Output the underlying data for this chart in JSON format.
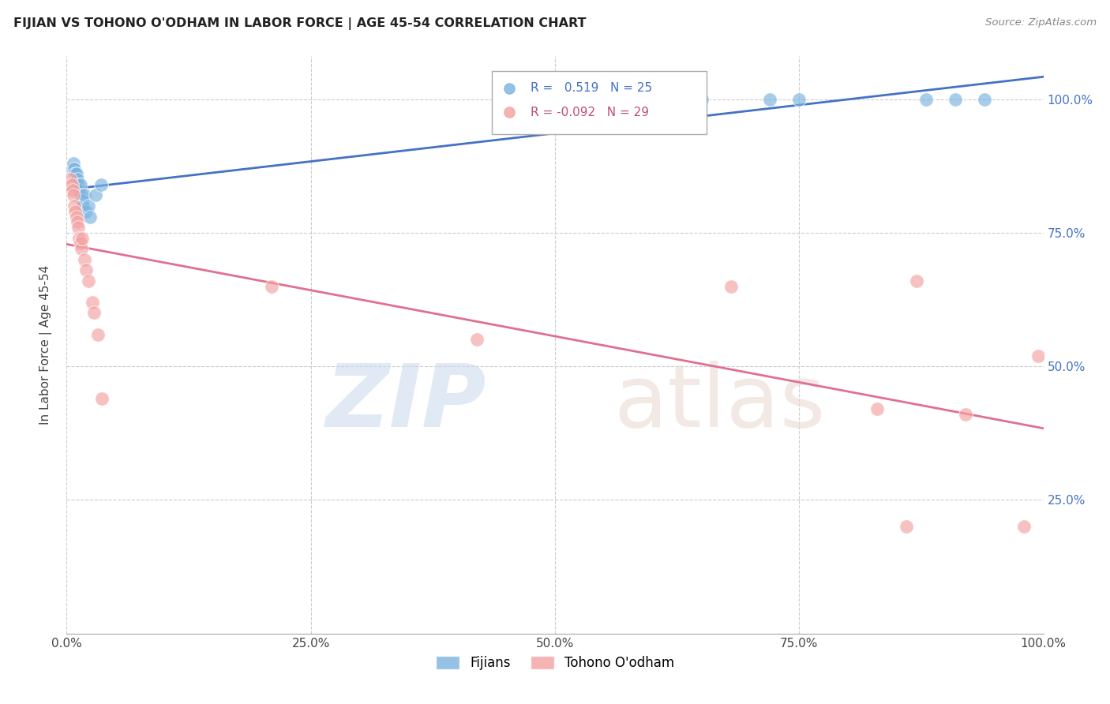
{
  "title": "FIJIAN VS TOHONO O'ODHAM IN LABOR FORCE | AGE 45-54 CORRELATION CHART",
  "source": "Source: ZipAtlas.com",
  "ylabel": "In Labor Force | Age 45-54",
  "fijian_r": 0.519,
  "fijian_n": 25,
  "tohono_r": -0.092,
  "tohono_n": 29,
  "fijian_color": "#7ab3e0",
  "tohono_color": "#f4a0a0",
  "fijian_line_color": "#4472c4",
  "tohono_line_color": "#e07090",
  "xlim": [
    0.0,
    1.0
  ],
  "ylim": [
    0.0,
    1.08
  ],
  "fijian_x": [
    0.006,
    0.007,
    0.008,
    0.009,
    0.01,
    0.011,
    0.012,
    0.013,
    0.014,
    0.015,
    0.016,
    0.017,
    0.018,
    0.02,
    0.022,
    0.024,
    0.03,
    0.035,
    0.62,
    0.65,
    0.72,
    0.75,
    0.88,
    0.91,
    0.94
  ],
  "fijian_y": [
    0.87,
    0.88,
    0.87,
    0.86,
    0.86,
    0.85,
    0.84,
    0.83,
    0.84,
    0.82,
    0.81,
    0.8,
    0.82,
    0.79,
    0.8,
    0.78,
    0.82,
    0.84,
    1.0,
    1.0,
    1.0,
    1.0,
    1.0,
    1.0,
    1.0
  ],
  "tohono_x": [
    0.004,
    0.005,
    0.006,
    0.007,
    0.008,
    0.009,
    0.01,
    0.011,
    0.012,
    0.013,
    0.014,
    0.015,
    0.016,
    0.018,
    0.02,
    0.022,
    0.026,
    0.028,
    0.032,
    0.036,
    0.21,
    0.42,
    0.68,
    0.83,
    0.86,
    0.87,
    0.92,
    0.98,
    0.995
  ],
  "tohono_y": [
    0.85,
    0.84,
    0.83,
    0.82,
    0.8,
    0.79,
    0.78,
    0.77,
    0.76,
    0.74,
    0.73,
    0.72,
    0.74,
    0.7,
    0.68,
    0.66,
    0.62,
    0.6,
    0.56,
    0.44,
    0.65,
    0.55,
    0.65,
    0.42,
    0.2,
    0.66,
    0.41,
    0.2,
    0.52
  ],
  "yticks": [
    0.0,
    0.25,
    0.5,
    0.75,
    1.0
  ],
  "xticks": [
    0.0,
    0.25,
    0.5,
    0.75,
    1.0
  ],
  "xtick_labels": [
    "0.0%",
    "25.0%",
    "50.0%",
    "75.0%",
    "100.0%"
  ],
  "ytick_labels_right": [
    "",
    "25.0%",
    "50.0%",
    "75.0%",
    "100.0%"
  ]
}
